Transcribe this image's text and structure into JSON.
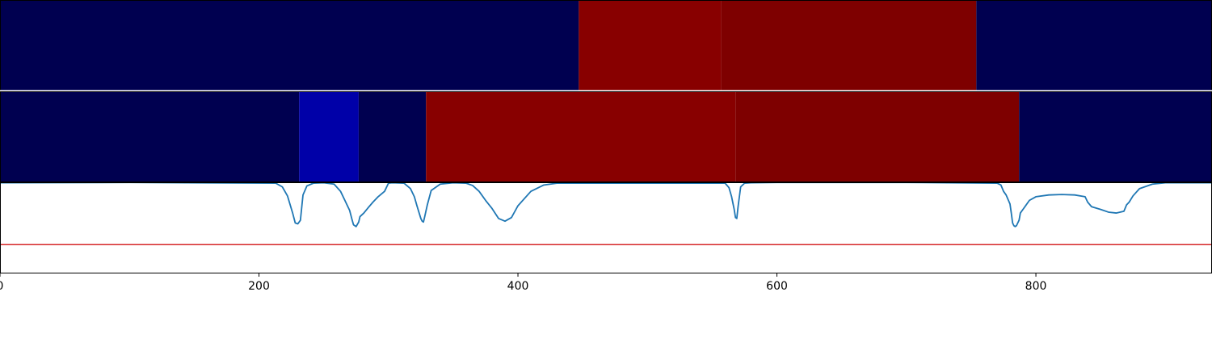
{
  "chart_data": {
    "type": "heatmap",
    "x_range": [
      0,
      936
    ],
    "x_ticks": [
      "0",
      "200",
      "400",
      "600",
      "800"
    ],
    "x_tick_values": [
      0,
      200,
      400,
      600,
      800
    ],
    "colors": {
      "background": "#000050",
      "deep_blue": "#0000a8",
      "red": "#880000",
      "dark_red": "#7e0000",
      "signal": "#1f77b4",
      "threshold": "#d62728"
    },
    "rows": [
      {
        "segments": [
          {
            "start": 0,
            "end": 447,
            "color": "#000050"
          },
          {
            "start": 447,
            "end": 557,
            "color": "#880000"
          },
          {
            "start": 557,
            "end": 754,
            "color": "#7e0000"
          },
          {
            "start": 754,
            "end": 936,
            "color": "#000050"
          }
        ]
      },
      {
        "segments": [
          {
            "start": 0,
            "end": 231,
            "color": "#000050"
          },
          {
            "start": 231,
            "end": 277,
            "color": "#0000a8"
          },
          {
            "start": 277,
            "end": 329,
            "color": "#000050"
          },
          {
            "start": 329,
            "end": 568,
            "color": "#880000"
          },
          {
            "start": 568,
            "end": 787,
            "color": "#7e0000"
          },
          {
            "start": 787,
            "end": 936,
            "color": "#000050"
          }
        ]
      }
    ],
    "line_panel": {
      "y_range": [
        0,
        1
      ],
      "threshold": 0.31,
      "x": [
        0,
        100,
        213,
        218,
        222,
        226,
        228,
        230,
        232,
        234,
        237,
        242,
        250,
        258,
        263,
        266,
        270,
        272,
        273,
        275,
        277,
        278,
        281,
        285,
        288,
        292,
        297,
        300,
        303,
        312,
        317,
        320,
        322,
        325,
        326,
        327,
        328,
        330,
        333,
        340,
        350,
        360,
        365,
        370,
        375,
        380,
        385,
        390,
        395,
        400,
        410,
        420,
        430,
        560,
        563,
        565,
        567,
        568,
        569,
        570,
        572,
        575,
        580,
        600,
        700,
        770,
        773,
        775,
        777,
        780,
        781,
        782,
        783,
        784,
        785,
        787,
        788,
        790,
        795,
        800,
        810,
        820,
        830,
        838,
        840,
        843,
        850,
        856,
        862,
        865,
        868,
        870,
        872,
        875,
        880,
        890,
        900,
        936
      ],
      "y": [
        0.995,
        0.998,
        0.99,
        0.95,
        0.85,
        0.66,
        0.55,
        0.54,
        0.58,
        0.86,
        0.96,
        0.99,
        0.995,
        0.98,
        0.9,
        0.81,
        0.69,
        0.58,
        0.53,
        0.51,
        0.56,
        0.62,
        0.66,
        0.73,
        0.78,
        0.84,
        0.9,
        0.99,
        0.995,
        0.99,
        0.93,
        0.84,
        0.74,
        0.6,
        0.57,
        0.56,
        0.62,
        0.75,
        0.91,
        0.98,
        0.995,
        0.99,
        0.965,
        0.9,
        0.8,
        0.71,
        0.6,
        0.57,
        0.61,
        0.74,
        0.9,
        0.97,
        0.99,
        0.99,
        0.94,
        0.84,
        0.7,
        0.61,
        0.6,
        0.73,
        0.95,
        0.99,
        0.995,
        0.998,
        0.998,
        0.99,
        0.97,
        0.9,
        0.86,
        0.76,
        0.66,
        0.55,
        0.52,
        0.51,
        0.52,
        0.58,
        0.66,
        0.7,
        0.8,
        0.84,
        0.86,
        0.865,
        0.86,
        0.84,
        0.78,
        0.73,
        0.7,
        0.67,
        0.66,
        0.67,
        0.68,
        0.75,
        0.78,
        0.85,
        0.93,
        0.98,
        0.995,
        0.995
      ]
    }
  }
}
